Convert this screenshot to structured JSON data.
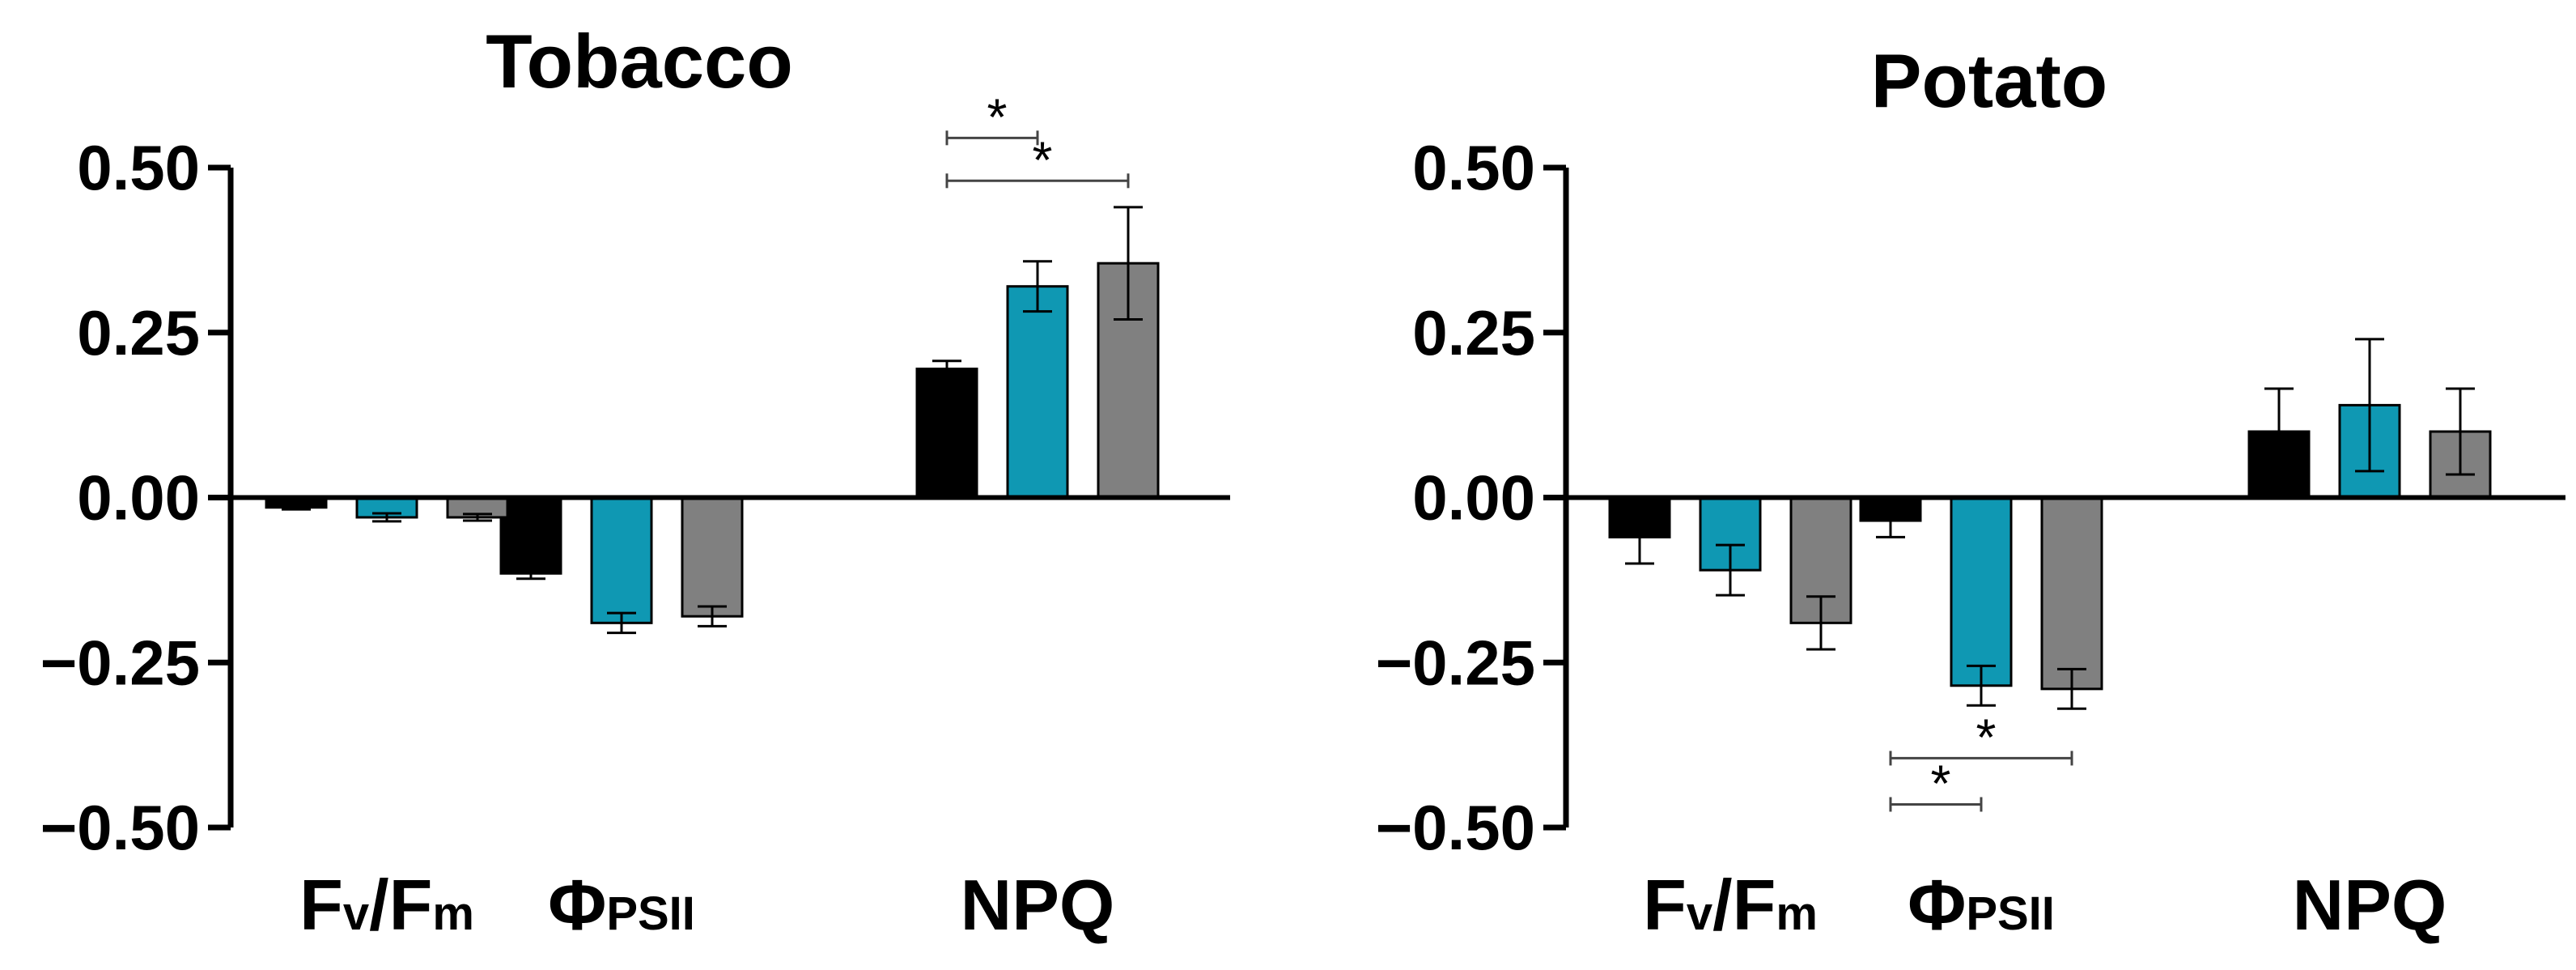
{
  "series_colors": [
    "#000000",
    "#0f98b3",
    "#808080"
  ],
  "chart_data": [
    {
      "type": "bar",
      "title": "Tobacco",
      "ylim": [
        -0.5,
        0.5
      ],
      "yticks": [
        "0.50",
        "0.25",
        "0.00",
        "−0.25",
        "−0.50"
      ],
      "ytick_values": [
        0.5,
        0.25,
        0,
        -0.25,
        -0.5
      ],
      "categories": [
        {
          "main": "F",
          "sub1": "v",
          "mid": "/F",
          "sub2": "m"
        },
        {
          "main": "Φ",
          "sub1": "PSII",
          "mid": "",
          "sub2": ""
        },
        {
          "main": "NPQ",
          "sub1": "",
          "mid": "",
          "sub2": ""
        }
      ],
      "series": [
        {
          "values": [
            -0.015,
            -0.115,
            0.195
          ],
          "errors": [
            0.003,
            0.008,
            0.012
          ]
        },
        {
          "values": [
            -0.03,
            -0.19,
            0.32
          ],
          "errors": [
            0.006,
            0.015,
            0.038
          ]
        },
        {
          "values": [
            -0.03,
            -0.18,
            0.355
          ],
          "errors": [
            0.005,
            0.015,
            0.085
          ]
        }
      ],
      "significance": [
        {
          "category": 2,
          "from": 0,
          "to": 1,
          "y": 0.545,
          "label": "*"
        },
        {
          "category": 2,
          "from": 0,
          "to": 2,
          "y": 0.48,
          "label": "*"
        }
      ]
    },
    {
      "type": "bar",
      "title": "Potato",
      "ylim": [
        -0.5,
        0.5
      ],
      "yticks": [
        "0.50",
        "0.25",
        "0.00",
        "−0.25",
        "−0.50"
      ],
      "ytick_values": [
        0.5,
        0.25,
        0,
        -0.25,
        -0.5
      ],
      "categories": [
        {
          "main": "F",
          "sub1": "v",
          "mid": "/F",
          "sub2": "m"
        },
        {
          "main": "Φ",
          "sub1": "PSII",
          "mid": "",
          "sub2": ""
        },
        {
          "main": "NPQ",
          "sub1": "",
          "mid": "",
          "sub2": ""
        }
      ],
      "series": [
        {
          "values": [
            -0.06,
            -0.035,
            0.1
          ],
          "errors": [
            0.04,
            0.025,
            0.065
          ]
        },
        {
          "values": [
            -0.11,
            -0.285,
            0.14
          ],
          "errors": [
            0.038,
            0.03,
            0.1
          ]
        },
        {
          "values": [
            -0.19,
            -0.29,
            0.1
          ],
          "errors": [
            0.04,
            0.03,
            0.065
          ]
        }
      ],
      "significance": [
        {
          "category": 1,
          "from": 0,
          "to": 2,
          "y": -0.395,
          "label": "*"
        },
        {
          "category": 1,
          "from": 0,
          "to": 1,
          "y": -0.465,
          "label": "*"
        }
      ]
    }
  ]
}
